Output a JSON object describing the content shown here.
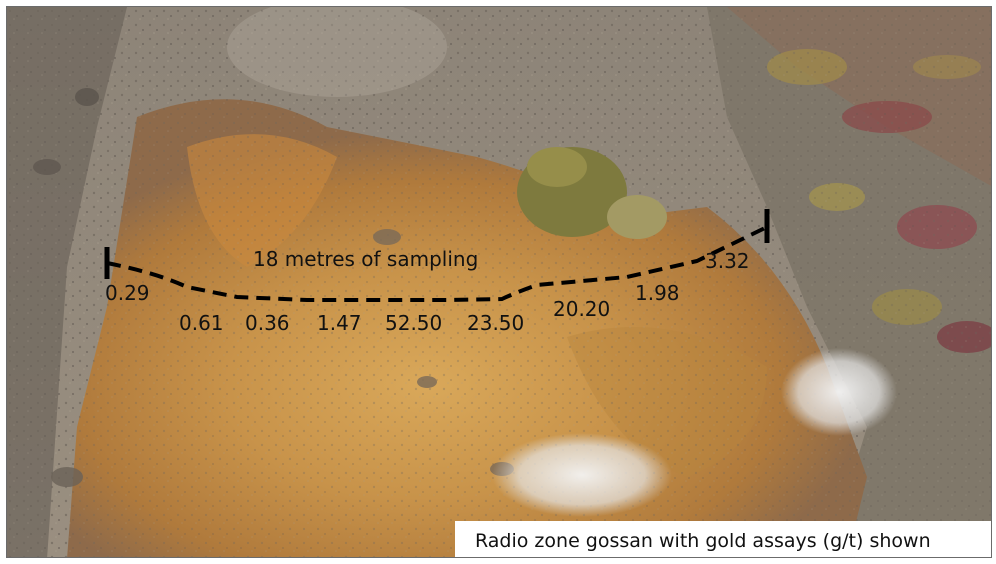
{
  "photo": {
    "subject": "hillside-gossan"
  },
  "annotation": {
    "title": "18 metres of sampling",
    "assays": [
      "0.29",
      "0.61",
      "0.36",
      "1.47",
      "52.50",
      "23.50",
      "20.20",
      "1.98",
      "3.32"
    ],
    "line_color": "#000000"
  },
  "caption": "Radio zone gossan with gold assays (g/t) shown"
}
